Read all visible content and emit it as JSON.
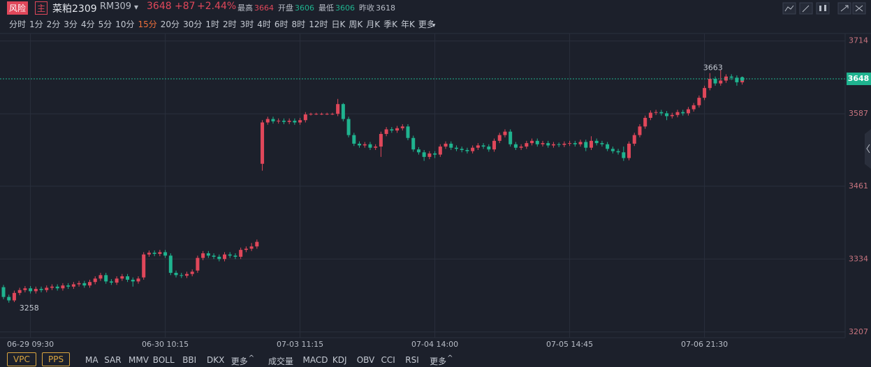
{
  "header": {
    "badge": "风险",
    "tag": "主",
    "name": "菜粕2309",
    "code": "RM309",
    "price": 3648,
    "change": "+87",
    "change_pct": "+2.44%",
    "stats": [
      {
        "label": "最高",
        "value": 3664
      },
      {
        "label": "开盘",
        "value": 3606
      },
      {
        "label": "最低",
        "value": 3606
      },
      {
        "label": "昨收",
        "value": 3618
      }
    ]
  },
  "periods": [
    "分时",
    "1分",
    "2分",
    "3分",
    "4分",
    "5分",
    "10分",
    "15分",
    "20分",
    "30分",
    "1时",
    "2时",
    "3时",
    "4时",
    "6时",
    "8时",
    "12时",
    "日K",
    "周K",
    "月K",
    "季K",
    "年K",
    "更多"
  ],
  "active_period": 7,
  "main_indicators": [
    "VPC",
    "PPS"
  ],
  "overlay_indicators": [
    "MA",
    "SAR",
    "MMV",
    "BOLL",
    "BBI",
    "DKX",
    "更多"
  ],
  "sub_indicators": [
    "成交量",
    "MACD",
    "KDJ",
    "OBV",
    "CCI",
    "RSI",
    "更多"
  ],
  "chart_data": {
    "type": "candlestick",
    "categories": [
      null,
      null,
      null,
      null,
      null,
      "06-29 09:30",
      null,
      null,
      null,
      null,
      null,
      null,
      null,
      null,
      null,
      null,
      null,
      null,
      null,
      null,
      null,
      null,
      null,
      null,
      null,
      null,
      null,
      null,
      null,
      null,
      "06-30 10:15",
      null,
      null,
      null,
      null,
      null,
      null,
      null,
      null,
      null,
      null,
      null,
      null,
      null,
      null,
      null,
      null,
      null,
      null,
      null,
      null,
      null,
      null,
      null,
      null,
      "07-03 11:15",
      null,
      null,
      null,
      null,
      null,
      null,
      null,
      null,
      null,
      null,
      null,
      null,
      null,
      null,
      null,
      null,
      null,
      null,
      null,
      null,
      null,
      null,
      null,
      null,
      "07-04 14:00",
      null,
      null,
      null,
      null,
      null,
      null,
      null,
      null,
      null,
      null,
      null,
      null,
      null,
      null,
      null,
      null,
      null,
      null,
      null,
      null,
      null,
      null,
      null,
      null,
      "07-05 14:45",
      null,
      null,
      null,
      null,
      null,
      null,
      null,
      null,
      null,
      null,
      null,
      null,
      null,
      null,
      null,
      null,
      null,
      null,
      null,
      null,
      null,
      null,
      null,
      null,
      "07-06 21:30",
      null,
      null,
      null,
      null,
      null,
      null,
      null
    ],
    "open": [
      3285,
      3268,
      3262,
      3275,
      3280,
      3283,
      3278,
      3282,
      3280,
      3284,
      3286,
      3283,
      3288,
      3286,
      3290,
      3292,
      3288,
      3294,
      3300,
      3306,
      3295,
      3293,
      3300,
      3304,
      3298,
      3295,
      3302,
      3342,
      3345,
      3343,
      3346,
      3340,
      3310,
      3306,
      3305,
      3308,
      3314,
      3336,
      3344,
      3340,
      3338,
      3334,
      3342,
      3340,
      3338,
      3350,
      3352,
      3356,
      3500,
      3572,
      3578,
      3574,
      3575,
      3573,
      3575,
      3572,
      3576,
      3586,
      3587,
      3587,
      3587,
      3587,
      3587,
      3604,
      3578,
      3550,
      3535,
      3532,
      3534,
      3528,
      3530,
      3552,
      3560,
      3558,
      3562,
      3565,
      3545,
      3525,
      3520,
      3512,
      3518,
      3516,
      3530,
      3535,
      3528,
      3526,
      3524,
      3522,
      3528,
      3532,
      3530,
      3525,
      3540,
      3550,
      3556,
      3534,
      3528,
      3530,
      3536,
      3540,
      3534,
      3536,
      3532,
      3534,
      3533,
      3535,
      3536,
      3534,
      3538,
      3528,
      3540,
      3536,
      3534,
      3526,
      3522,
      3520,
      3510,
      3535,
      3550,
      3565,
      3580,
      3589,
      3590,
      3588,
      3583,
      3585,
      3590,
      3588,
      3595,
      3602,
      3615,
      3632,
      3648,
      3640,
      3645,
      3652,
      3650,
      3642
    ],
    "high": [
      3289,
      3272,
      3279,
      3284,
      3287,
      3287,
      3286,
      3286,
      3288,
      3290,
      3290,
      3292,
      3292,
      3294,
      3296,
      3296,
      3298,
      3304,
      3310,
      3310,
      3299,
      3304,
      3308,
      3308,
      3302,
      3304,
      3346,
      3349,
      3349,
      3350,
      3350,
      3344,
      3314,
      3310,
      3312,
      3316,
      3340,
      3348,
      3348,
      3344,
      3342,
      3346,
      3346,
      3344,
      3354,
      3356,
      3362,
      3368,
      3576,
      3582,
      3582,
      3579,
      3579,
      3579,
      3579,
      3580,
      3590,
      3589,
      3589,
      3589,
      3589,
      3589,
      3613,
      3606,
      3582,
      3554,
      3539,
      3538,
      3538,
      3534,
      3556,
      3564,
      3564,
      3566,
      3569,
      3569,
      3549,
      3529,
      3524,
      3522,
      3522,
      3534,
      3539,
      3539,
      3532,
      3530,
      3528,
      3532,
      3536,
      3536,
      3534,
      3544,
      3554,
      3560,
      3560,
      3538,
      3534,
      3540,
      3544,
      3544,
      3540,
      3540,
      3538,
      3537,
      3539,
      3540,
      3540,
      3542,
      3542,
      3548,
      3544,
      3540,
      3538,
      3530,
      3526,
      3530,
      3539,
      3554,
      3569,
      3584,
      3593,
      3594,
      3594,
      3592,
      3589,
      3594,
      3594,
      3599,
      3606,
      3619,
      3636,
      3658,
      3652,
      3663,
      3656,
      3656,
      3654,
      3652
    ],
    "low": [
      3264,
      3258,
      3259,
      3271,
      3276,
      3274,
      3274,
      3276,
      3276,
      3280,
      3279,
      3279,
      3282,
      3282,
      3286,
      3284,
      3284,
      3290,
      3296,
      3291,
      3289,
      3289,
      3296,
      3294,
      3286,
      3291,
      3298,
      3338,
      3339,
      3339,
      3336,
      3306,
      3302,
      3301,
      3301,
      3304,
      3310,
      3332,
      3336,
      3334,
      3330,
      3330,
      3336,
      3334,
      3334,
      3346,
      3348,
      3352,
      3488,
      3568,
      3570,
      3570,
      3569,
      3569,
      3568,
      3568,
      3572,
      3584,
      3585,
      3585,
      3585,
      3585,
      3583,
      3574,
      3546,
      3531,
      3528,
      3528,
      3524,
      3524,
      3512,
      3548,
      3554,
      3554,
      3558,
      3541,
      3521,
      3516,
      3505,
      3508,
      3510,
      3512,
      3526,
      3524,
      3522,
      3520,
      3518,
      3518,
      3524,
      3526,
      3521,
      3521,
      3536,
      3546,
      3530,
      3524,
      3524,
      3526,
      3532,
      3530,
      3530,
      3528,
      3528,
      3529,
      3529,
      3531,
      3530,
      3530,
      3522,
      3524,
      3532,
      3530,
      3522,
      3518,
      3516,
      3505,
      3506,
      3531,
      3546,
      3561,
      3576,
      3585,
      3584,
      3576,
      3579,
      3581,
      3584,
      3584,
      3591,
      3598,
      3611,
      3628,
      3636,
      3636,
      3641,
      3646,
      3636,
      3638
    ],
    "close": [
      3268,
      3262,
      3275,
      3280,
      3283,
      3278,
      3282,
      3280,
      3284,
      3286,
      3283,
      3288,
      3286,
      3290,
      3292,
      3288,
      3294,
      3300,
      3306,
      3295,
      3293,
      3300,
      3304,
      3298,
      3295,
      3300,
      3342,
      3345,
      3343,
      3346,
      3340,
      3310,
      3306,
      3305,
      3308,
      3312,
      3336,
      3344,
      3340,
      3338,
      3334,
      3342,
      3340,
      3338,
      3350,
      3352,
      3356,
      3364,
      3572,
      3578,
      3574,
      3575,
      3573,
      3575,
      3572,
      3576,
      3586,
      3587,
      3587,
      3587,
      3587,
      3587,
      3604,
      3578,
      3550,
      3535,
      3532,
      3534,
      3528,
      3530,
      3552,
      3560,
      3558,
      3562,
      3565,
      3545,
      3525,
      3520,
      3512,
      3518,
      3516,
      3530,
      3535,
      3528,
      3526,
      3524,
      3522,
      3528,
      3532,
      3530,
      3525,
      3540,
      3550,
      3556,
      3534,
      3528,
      3530,
      3536,
      3540,
      3534,
      3536,
      3532,
      3534,
      3533,
      3535,
      3536,
      3534,
      3538,
      3528,
      3540,
      3536,
      3534,
      3526,
      3522,
      3520,
      3510,
      3535,
      3550,
      3565,
      3580,
      3589,
      3590,
      3588,
      3583,
      3585,
      3590,
      3588,
      3595,
      3602,
      3615,
      3632,
      3648,
      3640,
      3645,
      3652,
      3650,
      3642,
      3648
    ],
    "up_color": "#e0475a",
    "down_color": "#1fb38f",
    "ylim": [
      3197,
      3727
    ],
    "yticks": [
      3207,
      3334,
      3461,
      3587,
      3714
    ],
    "grid": true,
    "last_price": 3648,
    "high_mark": 3663,
    "low_mark": 3258
  }
}
